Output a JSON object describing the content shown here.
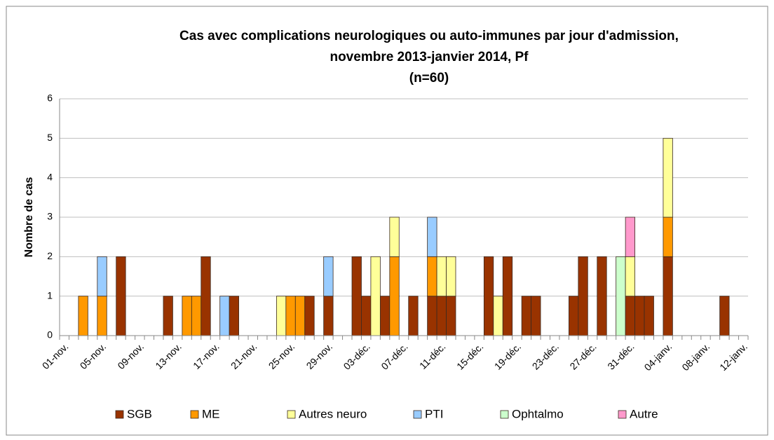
{
  "chart_data": {
    "type": "stacked_bar",
    "title": [
      "Cas avec complications neurologiques ou auto-immunes par jour d'admission,",
      "novembre 2013-janvier 2014, Pf",
      "(n=60)"
    ],
    "y_label": "Nombre de cas",
    "categories": [
      "01-nov.",
      null,
      null,
      null,
      "05-nov.",
      null,
      null,
      null,
      "09-nov.",
      null,
      null,
      null,
      "13-nov.",
      null,
      null,
      null,
      "17-nov.",
      null,
      null,
      null,
      "21-nov.",
      null,
      null,
      null,
      "25-nov.",
      null,
      null,
      null,
      "29-nov.",
      null,
      null,
      null,
      "03-déc.",
      null,
      null,
      null,
      "07-déc.",
      null,
      null,
      null,
      "11-déc.",
      null,
      null,
      null,
      "15-déc.",
      null,
      null,
      null,
      "19-déc.",
      null,
      null,
      null,
      "23-déc.",
      null,
      null,
      null,
      "27-déc.",
      null,
      null,
      null,
      "31-déc.",
      null,
      null,
      null,
      "04-janv.",
      null,
      null,
      null,
      "08-janv.",
      null,
      null,
      null,
      "12-janv."
    ],
    "series": [
      {
        "name": "SGB",
        "color": "#993300",
        "values": [
          0,
          0,
          0,
          0,
          0,
          0,
          2,
          0,
          0,
          0,
          0,
          1,
          0,
          0,
          0,
          2,
          0,
          0,
          1,
          0,
          0,
          0,
          0,
          0,
          0,
          0,
          1,
          0,
          1,
          0,
          0,
          2,
          1,
          0,
          1,
          0,
          0,
          1,
          0,
          1,
          1,
          1,
          0,
          0,
          0,
          2,
          0,
          2,
          0,
          1,
          1,
          0,
          0,
          0,
          1,
          2,
          0,
          2,
          0,
          0,
          1,
          1,
          1,
          0,
          2,
          0,
          0,
          0,
          0,
          0,
          1,
          0,
          0
        ]
      },
      {
        "name": "ME",
        "color": "#ff9900",
        "values": [
          0,
          0,
          1,
          0,
          1,
          0,
          0,
          0,
          0,
          0,
          0,
          0,
          0,
          1,
          1,
          0,
          0,
          0,
          0,
          0,
          0,
          0,
          0,
          0,
          1,
          1,
          0,
          0,
          0,
          0,
          0,
          0,
          0,
          0,
          0,
          2,
          0,
          0,
          0,
          1,
          0,
          0,
          0,
          0,
          0,
          0,
          0,
          0,
          0,
          0,
          0,
          0,
          0,
          0,
          0,
          0,
          0,
          0,
          0,
          0,
          0,
          0,
          0,
          0,
          1,
          0,
          0,
          0,
          0,
          0,
          0,
          0,
          0
        ]
      },
      {
        "name": "Autres neuro",
        "color": "#ffff99",
        "values": [
          0,
          0,
          0,
          0,
          0,
          0,
          0,
          0,
          0,
          0,
          0,
          0,
          0,
          0,
          0,
          0,
          0,
          0,
          0,
          0,
          0,
          0,
          0,
          1,
          0,
          0,
          0,
          0,
          0,
          0,
          0,
          0,
          0,
          2,
          0,
          1,
          0,
          0,
          0,
          0,
          1,
          1,
          0,
          0,
          0,
          0,
          1,
          0,
          0,
          0,
          0,
          0,
          0,
          0,
          0,
          0,
          0,
          0,
          0,
          0,
          1,
          0,
          0,
          0,
          2,
          0,
          0,
          0,
          0,
          0,
          0,
          0,
          0
        ]
      },
      {
        "name": "PTI",
        "color": "#99ccff",
        "values": [
          0,
          0,
          0,
          0,
          1,
          0,
          0,
          0,
          0,
          0,
          0,
          0,
          0,
          0,
          0,
          0,
          0,
          1,
          0,
          0,
          0,
          0,
          0,
          0,
          0,
          0,
          0,
          0,
          1,
          0,
          0,
          0,
          0,
          0,
          0,
          0,
          0,
          0,
          0,
          1,
          0,
          0,
          0,
          0,
          0,
          0,
          0,
          0,
          0,
          0,
          0,
          0,
          0,
          0,
          0,
          0,
          0,
          0,
          0,
          0,
          0,
          0,
          0,
          0,
          0,
          0,
          0,
          0,
          0,
          0,
          0,
          0,
          0
        ]
      },
      {
        "name": "Ophtalmo",
        "color": "#ccffcc",
        "values": [
          0,
          0,
          0,
          0,
          0,
          0,
          0,
          0,
          0,
          0,
          0,
          0,
          0,
          0,
          0,
          0,
          0,
          0,
          0,
          0,
          0,
          0,
          0,
          0,
          0,
          0,
          0,
          0,
          0,
          0,
          0,
          0,
          0,
          0,
          0,
          0,
          0,
          0,
          0,
          0,
          0,
          0,
          0,
          0,
          0,
          0,
          0,
          0,
          0,
          0,
          0,
          0,
          0,
          0,
          0,
          0,
          0,
          0,
          0,
          2,
          0,
          0,
          0,
          0,
          0,
          0,
          0,
          0,
          0,
          0,
          0,
          0,
          0
        ]
      },
      {
        "name": "Autre",
        "color": "#ff99cc",
        "values": [
          0,
          0,
          0,
          0,
          0,
          0,
          0,
          0,
          0,
          0,
          0,
          0,
          0,
          0,
          0,
          0,
          0,
          0,
          0,
          0,
          0,
          0,
          0,
          0,
          0,
          0,
          0,
          0,
          0,
          0,
          0,
          0,
          0,
          0,
          0,
          0,
          0,
          0,
          0,
          0,
          0,
          0,
          0,
          0,
          0,
          0,
          0,
          0,
          0,
          0,
          0,
          0,
          0,
          0,
          0,
          0,
          0,
          0,
          0,
          0,
          1,
          0,
          0,
          0,
          0,
          0,
          0,
          0,
          0,
          0,
          0,
          0,
          0
        ]
      }
    ],
    "ylim": [
      0,
      6
    ],
    "yticks": [
      0,
      1,
      2,
      3,
      4,
      5,
      6
    ],
    "grid": true,
    "legend": "bottom"
  }
}
